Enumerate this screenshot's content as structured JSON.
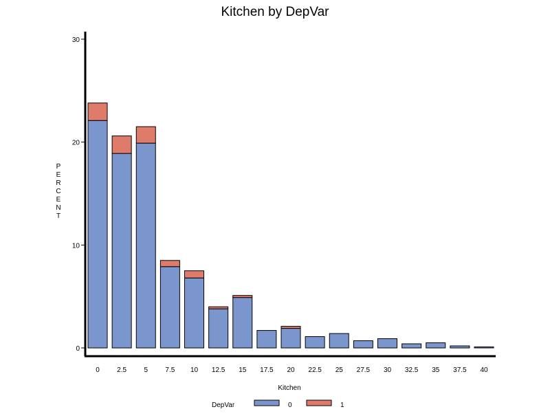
{
  "chart_data": {
    "type": "bar",
    "stacked": true,
    "title": "Kitchen by DepVar",
    "xlabel": "Kitchen",
    "ylabel": "PERCENT",
    "categories": [
      "0",
      "2.5",
      "5",
      "7.5",
      "10",
      "12.5",
      "15",
      "17.5",
      "20",
      "22.5",
      "25",
      "27.5",
      "30",
      "32.5",
      "35",
      "37.5",
      "40"
    ],
    "series": [
      {
        "name": "0",
        "color": "#7b96cc",
        "values": [
          22.1,
          18.9,
          19.9,
          7.9,
          6.8,
          3.8,
          4.9,
          1.7,
          1.9,
          1.1,
          1.4,
          0.7,
          0.9,
          0.4,
          0.5,
          0.2,
          0.1
        ]
      },
      {
        "name": "1",
        "color": "#de7b6b",
        "values": [
          1.7,
          1.7,
          1.6,
          0.6,
          0.7,
          0.2,
          0.2,
          0.0,
          0.2,
          0.0,
          0.0,
          0.0,
          0.0,
          0.0,
          0.0,
          0.0,
          0.0
        ]
      }
    ],
    "ylim": [
      0,
      30
    ],
    "yticks": [
      0,
      10,
      20,
      30
    ],
    "grid": false,
    "legend": {
      "title": "DepVar",
      "placement": "bottom",
      "entries": [
        "0",
        "1"
      ]
    }
  }
}
